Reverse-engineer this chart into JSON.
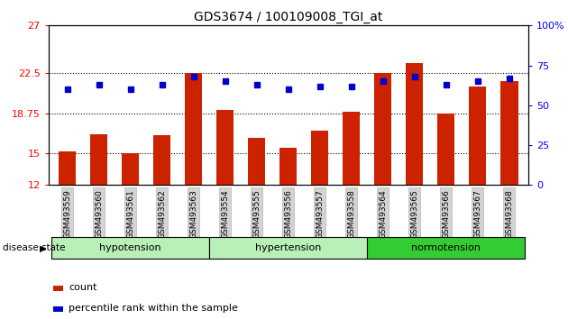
{
  "title": "GDS3674 / 100109008_TGI_at",
  "samples": [
    "GSM493559",
    "GSM493560",
    "GSM493561",
    "GSM493562",
    "GSM493563",
    "GSM493554",
    "GSM493555",
    "GSM493556",
    "GSM493557",
    "GSM493558",
    "GSM493564",
    "GSM493565",
    "GSM493566",
    "GSM493567",
    "GSM493568"
  ],
  "bar_values": [
    15.2,
    16.8,
    15.0,
    16.7,
    22.5,
    19.1,
    16.4,
    15.5,
    17.1,
    18.9,
    22.5,
    23.5,
    18.75,
    21.3,
    21.8
  ],
  "dot_values": [
    60,
    63,
    60,
    63,
    68,
    65,
    63,
    60,
    62,
    62,
    65,
    68,
    63,
    65,
    67
  ],
  "ymin": 12,
  "ymax": 27,
  "yticks": [
    12,
    15,
    18.75,
    22.5,
    27
  ],
  "ytick_labels": [
    "12",
    "15",
    "18.75",
    "22.5",
    "27"
  ],
  "y2ticks": [
    0,
    25,
    50,
    75,
    100
  ],
  "y2tick_labels": [
    "0",
    "25",
    "50",
    "75",
    "100%"
  ],
  "bar_color": "#cc2200",
  "dot_color": "#0000cc",
  "group_boundaries": [
    {
      "label": "hypotension",
      "start": 0,
      "end": 5,
      "color": "#b8f0b8"
    },
    {
      "label": "hypertension",
      "start": 5,
      "end": 10,
      "color": "#b8f0b8"
    },
    {
      "label": "normotension",
      "start": 10,
      "end": 15,
      "color": "#33cc33"
    }
  ],
  "disease_state_label": "disease state",
  "legend_count": "count",
  "legend_percentile": "percentile rank within the sample"
}
